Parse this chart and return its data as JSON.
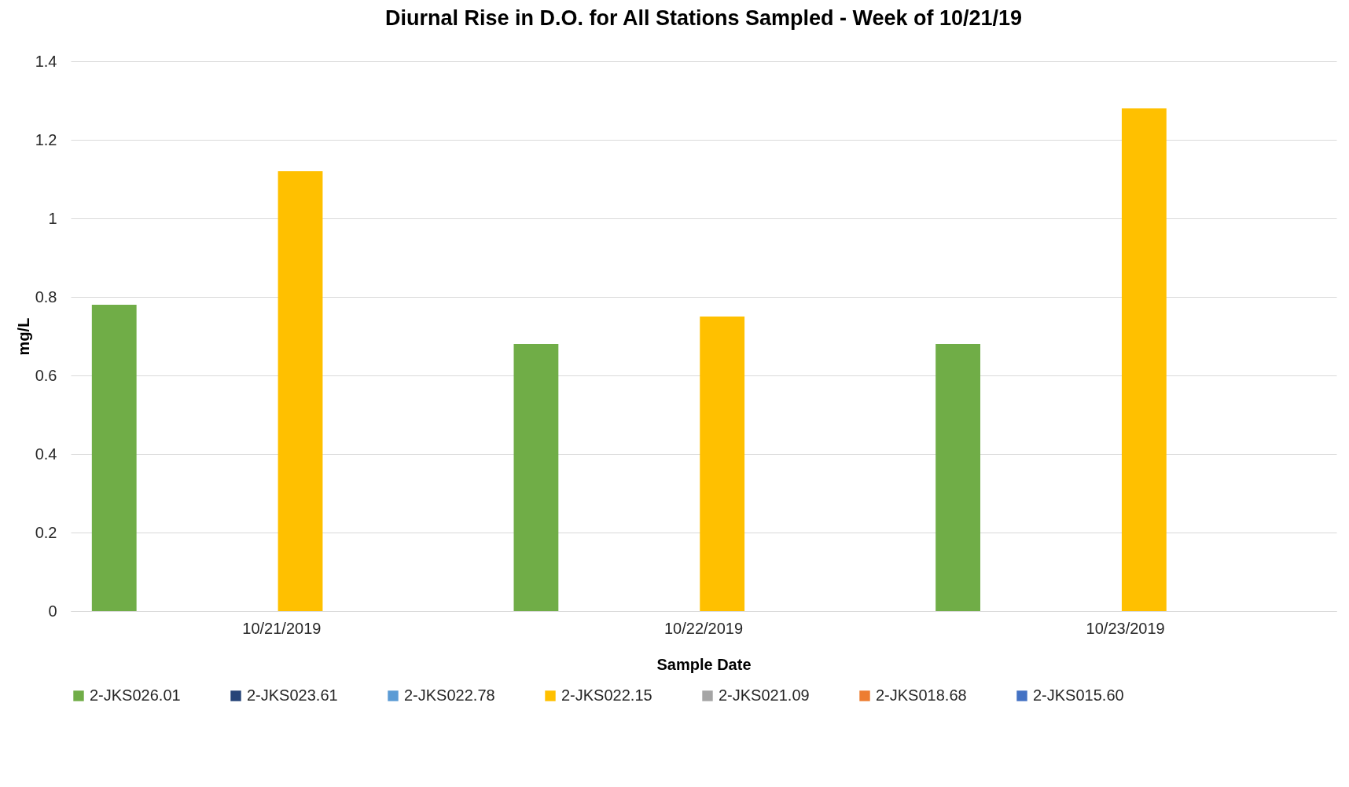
{
  "chart_data": {
    "type": "bar",
    "title": "Diurnal Rise in D.O. for All Stations Sampled - Week of 10/21/19",
    "xlabel": "Sample Date",
    "ylabel": "mg/L",
    "categories": [
      "10/21/2019",
      "10/22/2019",
      "10/23/2019"
    ],
    "series": [
      {
        "name": "2-JKS026.01",
        "color": "#70ad47",
        "values": [
          0.78,
          0.68,
          0.68
        ]
      },
      {
        "name": "2-JKS023.61",
        "color": "#264478",
        "values": [
          null,
          null,
          null
        ]
      },
      {
        "name": "2-JKS022.78",
        "color": "#5b9bd5",
        "values": [
          null,
          null,
          null
        ]
      },
      {
        "name": "2-JKS022.15",
        "color": "#ffc000",
        "values": [
          1.12,
          0.75,
          1.28
        ]
      },
      {
        "name": "2-JKS021.09",
        "color": "#a5a5a5",
        "values": [
          null,
          null,
          null
        ]
      },
      {
        "name": "2-JKS018.68",
        "color": "#ed7d31",
        "values": [
          null,
          null,
          null
        ]
      },
      {
        "name": "2-JKS015.60",
        "color": "#4472c4",
        "values": [
          null,
          null,
          null
        ]
      }
    ],
    "ylim": [
      0,
      1.4
    ],
    "yticks": [
      0,
      0.2,
      0.4,
      0.6,
      0.8,
      1,
      1.2,
      1.4
    ],
    "grid": "y",
    "legend": "bottom"
  }
}
